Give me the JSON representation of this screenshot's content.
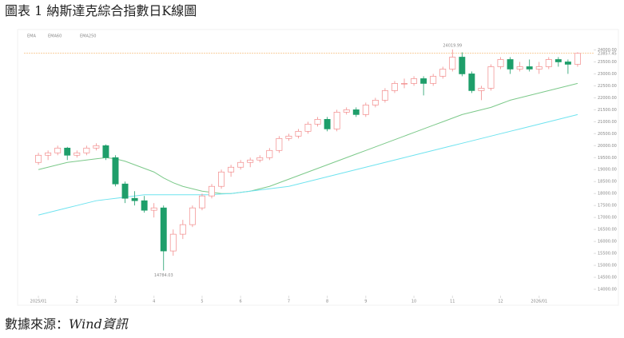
{
  "title": "圖表 1 納斯達克綜合指數日K線圖",
  "source_label": "數據來源：",
  "source_name": "Wind資訊",
  "chart_data": {
    "type": "candlestick",
    "legend_title": "EMA",
    "up_color": "#f28b8b",
    "down_color": "#1e9e6a",
    "candles": [
      [
        19300,
        19700,
        19200,
        19600
      ],
      [
        19600,
        19800,
        19400,
        19700
      ],
      [
        19700,
        20000,
        19600,
        19900
      ],
      [
        19900,
        19950,
        19400,
        19600
      ],
      [
        19600,
        19800,
        19500,
        19700
      ],
      [
        19700,
        20000,
        19600,
        19900
      ],
      [
        19900,
        20100,
        19800,
        20000
      ],
      [
        20000,
        20050,
        19400,
        19500
      ],
      [
        19500,
        19600,
        18300,
        18400
      ],
      [
        18400,
        18500,
        17600,
        17800
      ],
      [
        17800,
        18100,
        17500,
        17700
      ],
      [
        17700,
        17900,
        17200,
        17300
      ],
      [
        17300,
        17600,
        17000,
        17400
      ],
      [
        17400,
        17500,
        14784.03,
        15600
      ],
      [
        15600,
        16500,
        15400,
        16300
      ],
      [
        16300,
        16900,
        16100,
        16700
      ],
      [
        16700,
        17500,
        16600,
        17400
      ],
      [
        17400,
        18000,
        17300,
        17900
      ],
      [
        17900,
        18400,
        17800,
        18300
      ],
      [
        18300,
        19000,
        18200,
        18900
      ],
      [
        18900,
        19200,
        18700,
        19100
      ],
      [
        19100,
        19400,
        19000,
        19300
      ],
      [
        19300,
        19500,
        19100,
        19400
      ],
      [
        19400,
        19600,
        19300,
        19500
      ],
      [
        19500,
        19900,
        19400,
        19800
      ],
      [
        19800,
        20400,
        19700,
        20300
      ],
      [
        20300,
        20500,
        20200,
        20400
      ],
      [
        20400,
        20700,
        20300,
        20600
      ],
      [
        20600,
        21000,
        20500,
        20900
      ],
      [
        20900,
        21200,
        20800,
        21100
      ],
      [
        21100,
        21200,
        20600,
        20700
      ],
      [
        20700,
        21500,
        20600,
        21400
      ],
      [
        21400,
        21600,
        21300,
        21500
      ],
      [
        21500,
        21600,
        21200,
        21300
      ],
      [
        21300,
        21800,
        21200,
        21700
      ],
      [
        21700,
        22000,
        21600,
        21900
      ],
      [
        21900,
        22400,
        21800,
        22300
      ],
      [
        22300,
        22700,
        22200,
        22600
      ],
      [
        22600,
        22800,
        22400,
        22600
      ],
      [
        22600,
        22900,
        22500,
        22800
      ],
      [
        22800,
        22900,
        22100,
        22600
      ],
      [
        22600,
        23000,
        22500,
        22900
      ],
      [
        22900,
        23300,
        22800,
        23200
      ],
      [
        23200,
        24019.99,
        23100,
        23700
      ],
      [
        23700,
        23900,
        22900,
        23000
      ],
      [
        23000,
        23100,
        22200,
        22300
      ],
      [
        22300,
        22500,
        21900,
        22400
      ],
      [
        22400,
        23400,
        22300,
        23300
      ],
      [
        23300,
        23700,
        23200,
        23600
      ],
      [
        23600,
        23700,
        23000,
        23200
      ],
      [
        23200,
        23500,
        23100,
        23300
      ],
      [
        23300,
        23600,
        23100,
        23200
      ],
      [
        23200,
        23500,
        23000,
        23300
      ],
      [
        23300,
        23700,
        23200,
        23600
      ],
      [
        23600,
        23700,
        23300,
        23500
      ],
      [
        23500,
        23600,
        23000,
        23400
      ],
      [
        23400,
        23900,
        23300,
        23857.45
      ]
    ],
    "series": [
      {
        "name": "EMA60",
        "color": "#7cc98a",
        "values": [
          19000,
          19100,
          19200,
          19300,
          19350,
          19400,
          19450,
          19500,
          19450,
          19350,
          19200,
          19050,
          18900,
          18650,
          18450,
          18300,
          18200,
          18100,
          18050,
          18000,
          18000,
          18050,
          18100,
          18200,
          18300,
          18450,
          18600,
          18750,
          18900,
          19050,
          19200,
          19350,
          19500,
          19650,
          19800,
          19950,
          20100,
          20250,
          20400,
          20550,
          20700,
          20850,
          21000,
          21150,
          21300,
          21400,
          21500,
          21600,
          21750,
          21900,
          22000,
          22100,
          22200,
          22300,
          22400,
          22500,
          22600
        ]
      },
      {
        "name": "EMA250",
        "color": "#6fe3ef",
        "values": [
          17100,
          17200,
          17300,
          17400,
          17500,
          17600,
          17700,
          17750,
          17800,
          17850,
          17900,
          17950,
          17950,
          17950,
          17950,
          17950,
          17950,
          17950,
          17950,
          17980,
          18000,
          18050,
          18100,
          18150,
          18200,
          18250,
          18300,
          18400,
          18500,
          18600,
          18700,
          18800,
          18900,
          19000,
          19100,
          19200,
          19300,
          19400,
          19500,
          19600,
          19700,
          19800,
          19900,
          20000,
          20100,
          20200,
          20300,
          20400,
          20500,
          20600,
          20700,
          20800,
          20900,
          21000,
          21100,
          21200,
          21300
        ]
      }
    ],
    "last_price": {
      "value": 23857.45,
      "label": "23857.45"
    },
    "annotations": [
      {
        "index": 43,
        "value": 24019.99,
        "label": "24019.99"
      },
      {
        "index": 13,
        "value": 14784.03,
        "label": "14784.03"
      }
    ],
    "xlim": [
      -1.5,
      57
    ],
    "xticks": [
      {
        "value": 0,
        "label": "2025/01"
      },
      {
        "value": 4,
        "label": "2"
      },
      {
        "value": 8,
        "label": "3"
      },
      {
        "value": 12,
        "label": "4"
      },
      {
        "value": 17,
        "label": "5"
      },
      {
        "value": 21,
        "label": "6"
      },
      {
        "value": 26,
        "label": "7"
      },
      {
        "value": 30,
        "label": "8"
      },
      {
        "value": 34,
        "label": "9"
      },
      {
        "value": 39,
        "label": "10"
      },
      {
        "value": 43,
        "label": "11"
      },
      {
        "value": 48,
        "label": "12"
      },
      {
        "value": 52,
        "label": "2026/01"
      }
    ],
    "ylim": [
      13800,
      24250
    ],
    "yticks": [
      {
        "value": 14000,
        "label": "14000.00"
      },
      {
        "value": 14500,
        "label": "14500.00"
      },
      {
        "value": 15000,
        "label": "15000.00"
      },
      {
        "value": 15500,
        "label": "15500.00"
      },
      {
        "value": 16000,
        "label": "16000.00"
      },
      {
        "value": 16500,
        "label": "16500.00"
      },
      {
        "value": 17000,
        "label": "17000.00"
      },
      {
        "value": 17500,
        "label": "17500.00"
      },
      {
        "value": 18000,
        "label": "18000.00"
      },
      {
        "value": 18500,
        "label": "18500.00"
      },
      {
        "value": 19000,
        "label": "19000.00"
      },
      {
        "value": 19500,
        "label": "19500.00"
      },
      {
        "value": 20000,
        "label": "20000.00"
      },
      {
        "value": 20500,
        "label": "20500.00"
      },
      {
        "value": 21000,
        "label": "21000.00"
      },
      {
        "value": 21500,
        "label": "21500.00"
      },
      {
        "value": 22000,
        "label": "22000.00"
      },
      {
        "value": 22500,
        "label": "22500.00"
      },
      {
        "value": 23000,
        "label": "23000.00"
      },
      {
        "value": 23500,
        "label": "23500.00"
      },
      {
        "value": 24000,
        "label": "24000.00"
      }
    ],
    "grid": false
  }
}
